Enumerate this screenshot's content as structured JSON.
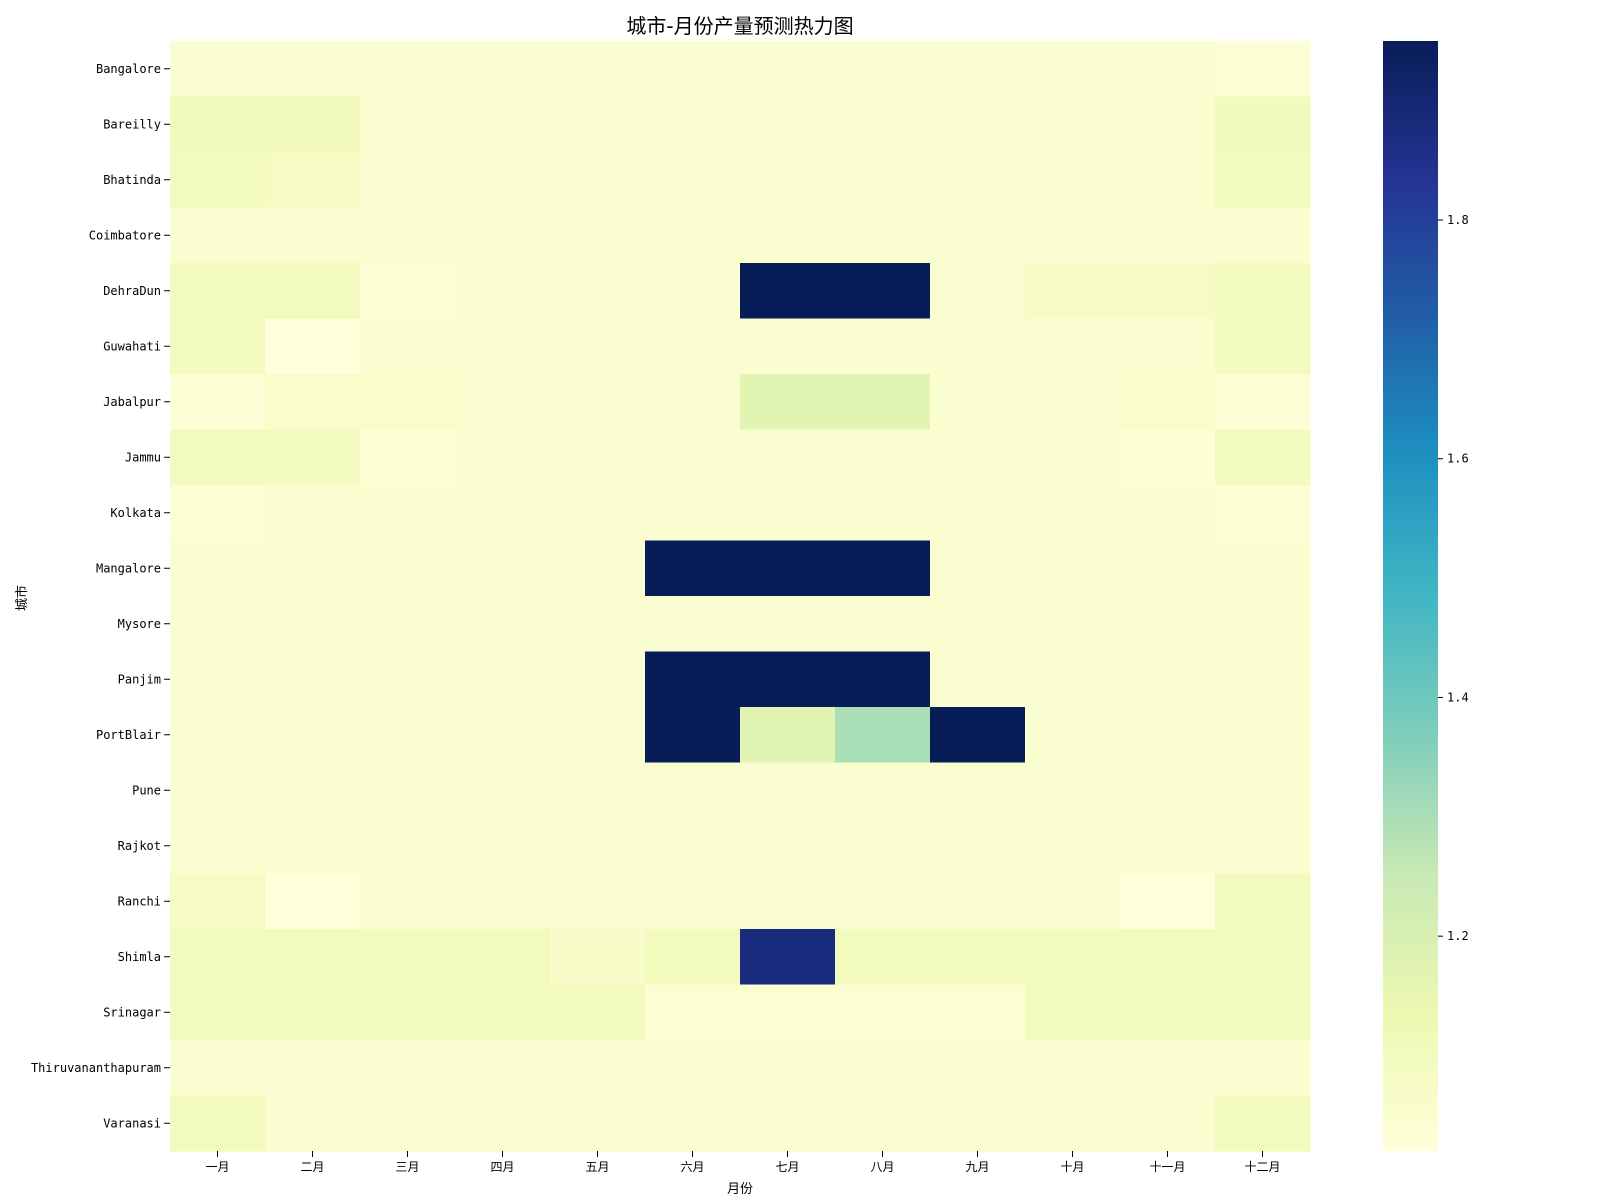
{
  "chart_data": {
    "type": "heatmap",
    "title": "城市-月份产量预测热力图",
    "xlabel": "月份",
    "ylabel": "城市",
    "x_categories": [
      "一月",
      "二月",
      "三月",
      "四月",
      "五月",
      "六月",
      "七月",
      "八月",
      "九月",
      "十月",
      "十一月",
      "十二月"
    ],
    "y_categories": [
      "Bangalore",
      "Bareilly",
      "Bhatinda",
      "Coimbatore",
      "DehraDun",
      "Guwahati",
      "Jabalpur",
      "Jammu",
      "Kolkata",
      "Mangalore",
      "Mysore",
      "Panjim",
      "PortBlair",
      "Pune",
      "Rajkot",
      "Ranchi",
      "Shimla",
      "Srinagar",
      "Thiruvananthapuram",
      "Varanasi"
    ],
    "values": [
      [
        1.05,
        1.05,
        1.05,
        1.05,
        1.05,
        1.05,
        1.05,
        1.05,
        1.05,
        1.05,
        1.05,
        1.03
      ],
      [
        1.11,
        1.11,
        1.05,
        1.05,
        1.05,
        1.05,
        1.05,
        1.05,
        1.05,
        1.05,
        1.05,
        1.11
      ],
      [
        1.1,
        1.08,
        1.05,
        1.05,
        1.05,
        1.05,
        1.05,
        1.05,
        1.05,
        1.05,
        1.05,
        1.09
      ],
      [
        1.05,
        1.05,
        1.05,
        1.05,
        1.05,
        1.05,
        1.05,
        1.05,
        1.05,
        1.05,
        1.05,
        1.05
      ],
      [
        1.1,
        1.1,
        1.03,
        1.05,
        1.05,
        1.05,
        1.95,
        1.95,
        1.05,
        1.08,
        1.08,
        1.1
      ],
      [
        1.1,
        1.02,
        1.05,
        1.05,
        1.05,
        1.05,
        1.05,
        1.05,
        1.05,
        1.05,
        1.05,
        1.1
      ],
      [
        1.03,
        1.06,
        1.06,
        1.05,
        1.05,
        1.05,
        1.17,
        1.17,
        1.05,
        1.05,
        1.06,
        1.03
      ],
      [
        1.1,
        1.1,
        1.03,
        1.05,
        1.05,
        1.05,
        1.05,
        1.05,
        1.05,
        1.05,
        1.03,
        1.1
      ],
      [
        1.03,
        1.05,
        1.05,
        1.05,
        1.05,
        1.05,
        1.05,
        1.05,
        1.05,
        1.05,
        1.05,
        1.03
      ],
      [
        1.05,
        1.05,
        1.05,
        1.05,
        1.05,
        1.95,
        1.95,
        1.95,
        1.05,
        1.05,
        1.05,
        1.05
      ],
      [
        1.05,
        1.05,
        1.05,
        1.05,
        1.05,
        1.05,
        1.05,
        1.05,
        1.05,
        1.05,
        1.05,
        1.05
      ],
      [
        1.05,
        1.05,
        1.05,
        1.05,
        1.05,
        1.95,
        1.95,
        1.95,
        1.05,
        1.05,
        1.05,
        1.05
      ],
      [
        1.05,
        1.05,
        1.05,
        1.05,
        1.05,
        1.95,
        1.17,
        1.3,
        1.95,
        1.05,
        1.05,
        1.05
      ],
      [
        1.05,
        1.05,
        1.05,
        1.05,
        1.05,
        1.05,
        1.05,
        1.05,
        1.05,
        1.05,
        1.05,
        1.05
      ],
      [
        1.05,
        1.05,
        1.05,
        1.05,
        1.05,
        1.05,
        1.05,
        1.05,
        1.05,
        1.05,
        1.05,
        1.05
      ],
      [
        1.08,
        1.02,
        1.05,
        1.05,
        1.05,
        1.05,
        1.05,
        1.05,
        1.05,
        1.05,
        1.02,
        1.1
      ],
      [
        1.1,
        1.1,
        1.1,
        1.1,
        1.07,
        1.1,
        1.88,
        1.1,
        1.1,
        1.1,
        1.1,
        1.1
      ],
      [
        1.1,
        1.1,
        1.1,
        1.1,
        1.1,
        1.04,
        1.04,
        1.04,
        1.04,
        1.1,
        1.1,
        1.1
      ],
      [
        1.05,
        1.05,
        1.05,
        1.05,
        1.05,
        1.05,
        1.05,
        1.05,
        1.05,
        1.05,
        1.05,
        1.05
      ],
      [
        1.1,
        1.05,
        1.05,
        1.05,
        1.05,
        1.05,
        1.05,
        1.05,
        1.05,
        1.05,
        1.05,
        1.1
      ]
    ],
    "vmin": 1.02,
    "vmax": 1.95,
    "colormap": "YlGnBu",
    "colorbar_ticks": [
      "1.2",
      "1.4",
      "1.6",
      "1.8"
    ],
    "grid": false
  }
}
